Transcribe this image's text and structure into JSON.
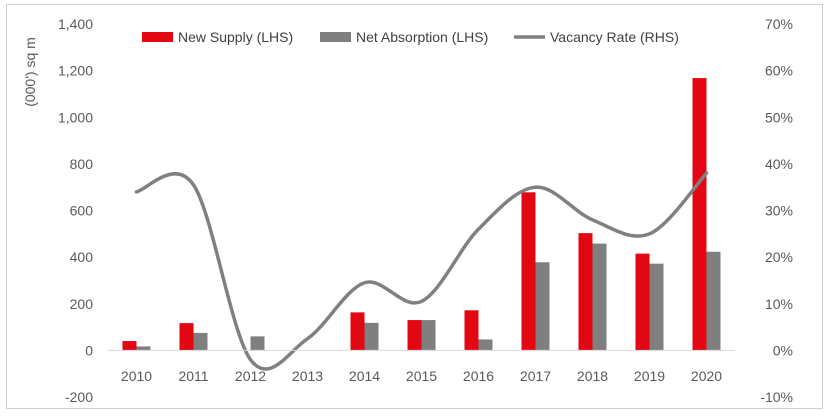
{
  "chart_data": {
    "type": "bar+line",
    "categories": [
      "2010",
      "2011",
      "2012",
      "2013",
      "2014",
      "2015",
      "2016",
      "2017",
      "2018",
      "2019",
      "2020"
    ],
    "series": [
      {
        "name": "New Supply (LHS)",
        "kind": "bar",
        "axis": "left",
        "color": "#e30613",
        "values": [
          40,
          117,
          0,
          0,
          163,
          130,
          172,
          678,
          503,
          415,
          1168
        ]
      },
      {
        "name": "Net Absorption (LHS)",
        "kind": "bar",
        "axis": "left",
        "color": "#7f7f7f",
        "values": [
          17,
          75,
          60,
          0,
          118,
          130,
          47,
          378,
          458,
          372,
          423
        ]
      },
      {
        "name": "Vacancy Rate (RHS)",
        "kind": "line",
        "axis": "right",
        "color": "#808080",
        "values": [
          34,
          35.5,
          -2,
          2.5,
          14.5,
          10.5,
          26,
          35,
          28,
          25,
          38
        ]
      }
    ],
    "ylabel": "(000') sq m",
    "ylim": [
      -200,
      1400
    ],
    "yticks": [
      "-200",
      "0",
      "200",
      "400",
      "600",
      "800",
      "1,000",
      "1,200",
      "1,400"
    ],
    "y2lim": [
      -10,
      70
    ],
    "y2ticks": [
      "-10%",
      "0%",
      "10%",
      "20%",
      "30%",
      "40%",
      "50%",
      "60%",
      "70%"
    ],
    "legend_position": "top",
    "grid": false
  }
}
